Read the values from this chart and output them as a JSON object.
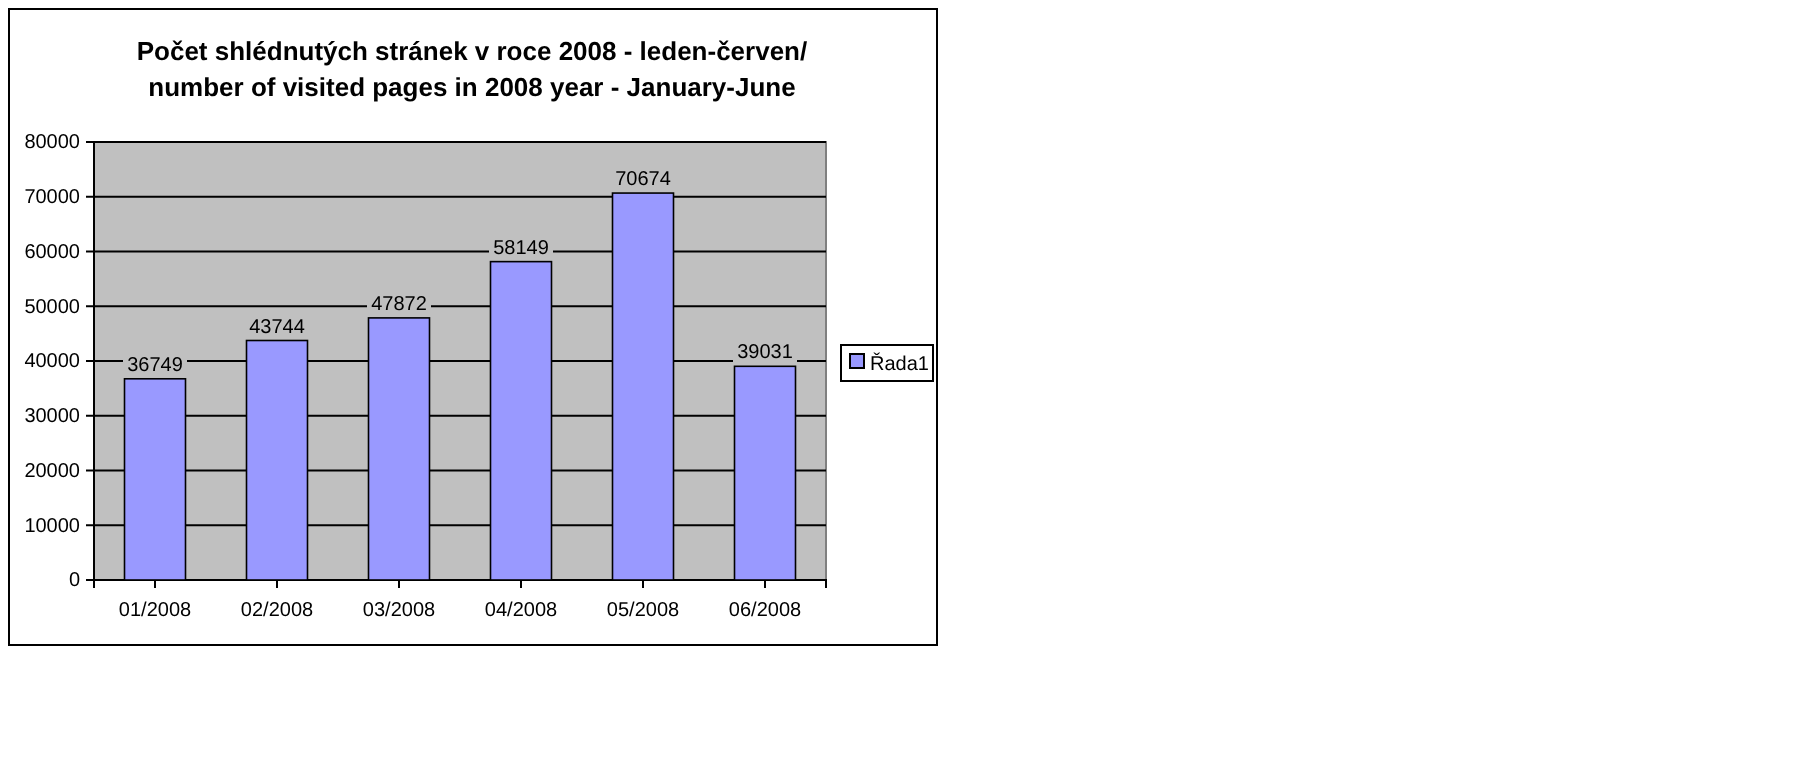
{
  "chart_data": {
    "type": "bar",
    "title": "Počet shlédnutých stránek v roce 2008 - leden-červen/number of visited pages in 2008 year - January-June",
    "categories": [
      "01/2008",
      "02/2008",
      "03/2008",
      "04/2008",
      "05/2008",
      "06/2008"
    ],
    "series": [
      {
        "name": "Řada1",
        "color": "#9999ff",
        "values": [
          36749,
          43744,
          47872,
          58149,
          70674,
          39031
        ]
      }
    ],
    "ylim": [
      0,
      80000
    ],
    "yticks": [
      0,
      10000,
      20000,
      30000,
      40000,
      50000,
      60000,
      70000,
      80000
    ],
    "grid": "y",
    "legend": "right",
    "data_labels": true
  }
}
